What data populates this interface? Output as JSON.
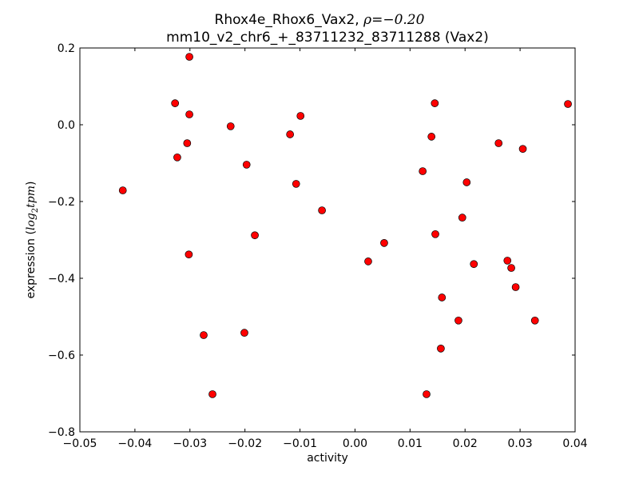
{
  "chart_data": {
    "type": "scatter",
    "title_line1": "Rhox4e_Rhox6_Vax2, ",
    "title_rho": "ρ=−0.20",
    "title_line2": "mm10_v2_chr6_+_83711232_83711288 (Vax2)",
    "xlabel": "activity",
    "ylabel_prefix": "expression (",
    "ylabel_math": "log",
    "ylabel_sub": "2",
    "ylabel_math2": "tpm",
    "ylabel_suffix": ")",
    "xlim": [
      -0.05,
      0.04
    ],
    "ylim": [
      -0.8,
      0.2
    ],
    "xticks": [
      -0.05,
      -0.04,
      -0.03,
      -0.02,
      -0.01,
      0.0,
      0.01,
      0.02,
      0.03,
      0.04
    ],
    "xtick_labels": [
      "−0.05",
      "−0.04",
      "−0.03",
      "−0.02",
      "−0.01",
      "0.00",
      "0.01",
      "0.02",
      "0.03",
      "0.04"
    ],
    "yticks": [
      0.2,
      0.0,
      -0.2,
      -0.4,
      -0.6,
      -0.8
    ],
    "ytick_labels": [
      "0.2",
      "0.0",
      "−0.2",
      "−0.4",
      "−0.6",
      "−0.8"
    ],
    "grid": false,
    "marker_color": "#ff0000",
    "points": [
      [
        -0.0301,
        0.177
      ],
      [
        -0.0327,
        0.056
      ],
      [
        -0.0301,
        0.027
      ],
      [
        -0.0226,
        -0.004
      ],
      [
        -0.0305,
        -0.048
      ],
      [
        -0.0323,
        -0.085
      ],
      [
        -0.0422,
        -0.171
      ],
      [
        -0.0197,
        -0.104
      ],
      [
        -0.0099,
        0.023
      ],
      [
        -0.0118,
        -0.025
      ],
      [
        -0.0107,
        -0.154
      ],
      [
        -0.006,
        -0.223
      ],
      [
        -0.0182,
        -0.288
      ],
      [
        -0.0302,
        -0.338
      ],
      [
        -0.0275,
        -0.548
      ],
      [
        -0.0201,
        -0.542
      ],
      [
        -0.0259,
        -0.702
      ],
      [
        0.0024,
        -0.356
      ],
      [
        0.0053,
        -0.308
      ],
      [
        0.0145,
        0.056
      ],
      [
        0.0139,
        -0.031
      ],
      [
        0.0123,
        -0.121
      ],
      [
        0.0146,
        -0.285
      ],
      [
        0.0158,
        -0.45
      ],
      [
        0.0156,
        -0.583
      ],
      [
        0.013,
        -0.702
      ],
      [
        0.0188,
        -0.51
      ],
      [
        0.0203,
        -0.15
      ],
      [
        0.0195,
        -0.242
      ],
      [
        0.0216,
        -0.363
      ],
      [
        0.0261,
        -0.048
      ],
      [
        0.0305,
        -0.063
      ],
      [
        0.0387,
        0.054
      ],
      [
        0.0277,
        -0.354
      ],
      [
        0.0284,
        -0.373
      ],
      [
        0.0292,
        -0.423
      ],
      [
        0.0327,
        -0.51
      ]
    ]
  }
}
